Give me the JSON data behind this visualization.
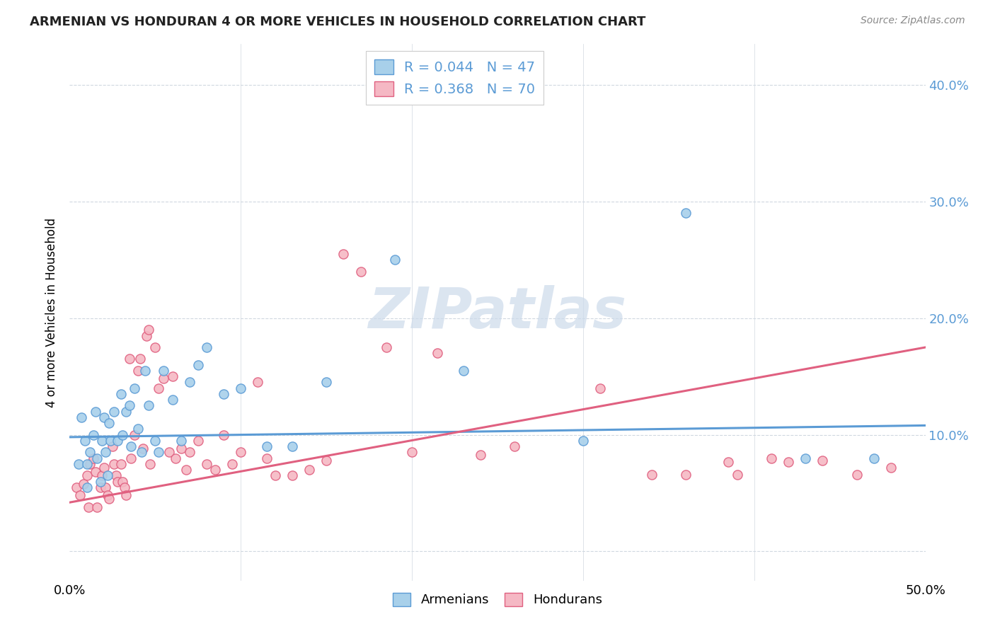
{
  "title": "ARMENIAN VS HONDURAN 4 OR MORE VEHICLES IN HOUSEHOLD CORRELATION CHART",
  "source": "Source: ZipAtlas.com",
  "ylabel": "4 or more Vehicles in Household",
  "xlim": [
    0.0,
    0.5
  ],
  "ylim": [
    -0.025,
    0.435
  ],
  "yticks": [
    0.0,
    0.1,
    0.2,
    0.3,
    0.4
  ],
  "ytick_labels_right": [
    "",
    "10.0%",
    "20.0%",
    "30.0%",
    "40.0%"
  ],
  "xticks": [
    0.0,
    0.1,
    0.2,
    0.3,
    0.4,
    0.5
  ],
  "xtick_labels": [
    "0.0%",
    "",
    "",
    "",
    "",
    "50.0%"
  ],
  "armenian_R": 0.044,
  "armenian_N": 47,
  "honduran_R": 0.368,
  "honduran_N": 70,
  "armenian_color": "#a8d0ea",
  "honduran_color": "#f5b8c4",
  "armenian_edge_color": "#5b9bd5",
  "honduran_edge_color": "#e06080",
  "armenian_line_color": "#5b9bd5",
  "honduran_line_color": "#e06080",
  "tick_label_color": "#5b9bd5",
  "legend_text_color": "#5b9bd5",
  "grid_color": "#d0d8e0",
  "watermark_color": "#ccdaeb",
  "armenian_line_x": [
    0.0,
    0.5
  ],
  "armenian_line_y": [
    0.098,
    0.108
  ],
  "honduran_line_x": [
    0.0,
    0.5
  ],
  "honduran_line_y": [
    0.042,
    0.175
  ],
  "armenian_points_x": [
    0.005,
    0.007,
    0.009,
    0.01,
    0.01,
    0.012,
    0.014,
    0.015,
    0.016,
    0.018,
    0.019,
    0.02,
    0.021,
    0.022,
    0.023,
    0.024,
    0.026,
    0.028,
    0.03,
    0.031,
    0.033,
    0.035,
    0.036,
    0.038,
    0.04,
    0.042,
    0.044,
    0.046,
    0.05,
    0.052,
    0.055,
    0.06,
    0.065,
    0.07,
    0.075,
    0.08,
    0.09,
    0.1,
    0.115,
    0.13,
    0.15,
    0.19,
    0.23,
    0.3,
    0.36,
    0.43,
    0.47
  ],
  "armenian_points_y": [
    0.075,
    0.115,
    0.095,
    0.075,
    0.055,
    0.085,
    0.1,
    0.12,
    0.08,
    0.06,
    0.095,
    0.115,
    0.085,
    0.065,
    0.11,
    0.095,
    0.12,
    0.095,
    0.135,
    0.1,
    0.12,
    0.125,
    0.09,
    0.14,
    0.105,
    0.085,
    0.155,
    0.125,
    0.095,
    0.085,
    0.155,
    0.13,
    0.095,
    0.145,
    0.16,
    0.175,
    0.135,
    0.14,
    0.09,
    0.09,
    0.145,
    0.25,
    0.155,
    0.095,
    0.29,
    0.08,
    0.08
  ],
  "honduran_points_x": [
    0.004,
    0.006,
    0.008,
    0.01,
    0.011,
    0.012,
    0.014,
    0.015,
    0.016,
    0.018,
    0.019,
    0.02,
    0.021,
    0.022,
    0.023,
    0.025,
    0.026,
    0.027,
    0.028,
    0.03,
    0.031,
    0.032,
    0.033,
    0.035,
    0.036,
    0.038,
    0.04,
    0.041,
    0.043,
    0.045,
    0.046,
    0.047,
    0.05,
    0.052,
    0.055,
    0.058,
    0.06,
    0.062,
    0.065,
    0.068,
    0.07,
    0.075,
    0.08,
    0.085,
    0.09,
    0.095,
    0.1,
    0.11,
    0.115,
    0.12,
    0.13,
    0.14,
    0.15,
    0.16,
    0.17,
    0.185,
    0.2,
    0.215,
    0.24,
    0.26,
    0.31,
    0.34,
    0.36,
    0.385,
    0.39,
    0.41,
    0.42,
    0.44,
    0.46,
    0.48
  ],
  "honduran_points_y": [
    0.055,
    0.048,
    0.058,
    0.065,
    0.038,
    0.075,
    0.08,
    0.068,
    0.038,
    0.055,
    0.065,
    0.072,
    0.055,
    0.048,
    0.045,
    0.09,
    0.075,
    0.065,
    0.06,
    0.075,
    0.06,
    0.055,
    0.048,
    0.165,
    0.08,
    0.1,
    0.155,
    0.165,
    0.088,
    0.185,
    0.19,
    0.075,
    0.175,
    0.14,
    0.148,
    0.085,
    0.15,
    0.08,
    0.088,
    0.07,
    0.085,
    0.095,
    0.075,
    0.07,
    0.1,
    0.075,
    0.085,
    0.145,
    0.08,
    0.065,
    0.065,
    0.07,
    0.078,
    0.255,
    0.24,
    0.175,
    0.085,
    0.17,
    0.083,
    0.09,
    0.14,
    0.066,
    0.066,
    0.077,
    0.066,
    0.08,
    0.077,
    0.078,
    0.066,
    0.072
  ]
}
